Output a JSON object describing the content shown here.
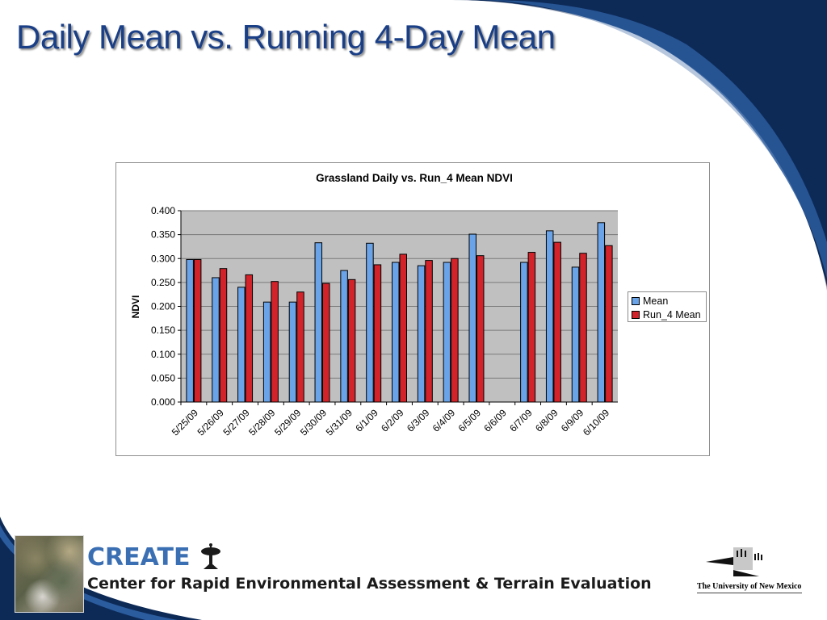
{
  "slide": {
    "title": "Daily Mean vs. Running 4-Day Mean"
  },
  "colors": {
    "title": "#1a3f86",
    "swoosh_dark": "#0d2a57",
    "swoosh_light": "#1f4d8f",
    "plot_area": "#c0c0c0",
    "mean_bar": "#6aa3e8",
    "run4_bar": "#d2232a"
  },
  "chart_data": {
    "type": "bar",
    "title": "Grassland Daily vs. Run_4 Mean NDVI",
    "xlabel": "",
    "ylabel": "NDVI",
    "ylim": [
      0,
      0.4
    ],
    "yticks": [
      "0.000",
      "0.050",
      "0.100",
      "0.150",
      "0.200",
      "0.250",
      "0.300",
      "0.350",
      "0.400"
    ],
    "grid": true,
    "legend": "right",
    "categories": [
      "5/25/09",
      "5/26/09",
      "5/27/09",
      "5/28/09",
      "5/29/09",
      "5/30/09",
      "5/31/09",
      "6/1/09",
      "6/2/09",
      "6/3/09",
      "6/4/09",
      "6/5/09",
      "6/6/09",
      "6/7/09",
      "6/8/09",
      "6/9/09",
      "6/10/09"
    ],
    "series": [
      {
        "name": "Mean",
        "color": "#6aa3e8",
        "values": [
          0.298,
          0.26,
          0.24,
          0.209,
          0.209,
          0.333,
          0.275,
          0.332,
          0.292,
          0.285,
          0.292,
          0.351,
          null,
          0.292,
          0.358,
          0.282,
          0.375
        ]
      },
      {
        "name": "Run_4 Mean",
        "color": "#d2232a",
        "values": [
          0.298,
          0.279,
          0.266,
          0.252,
          0.23,
          0.248,
          0.256,
          0.287,
          0.309,
          0.296,
          0.3,
          0.306,
          null,
          0.313,
          0.334,
          0.311,
          0.327
        ]
      }
    ]
  },
  "footer": {
    "brand": "CREATE",
    "brand_full": "Center for Rapid Environmental Assessment & Terrain Evaluation",
    "university": "The University of New Mexico",
    "icons": {
      "photo": "satellite-image",
      "dish": "satellite-dish-icon",
      "logo": "unm-logo-icon"
    }
  }
}
